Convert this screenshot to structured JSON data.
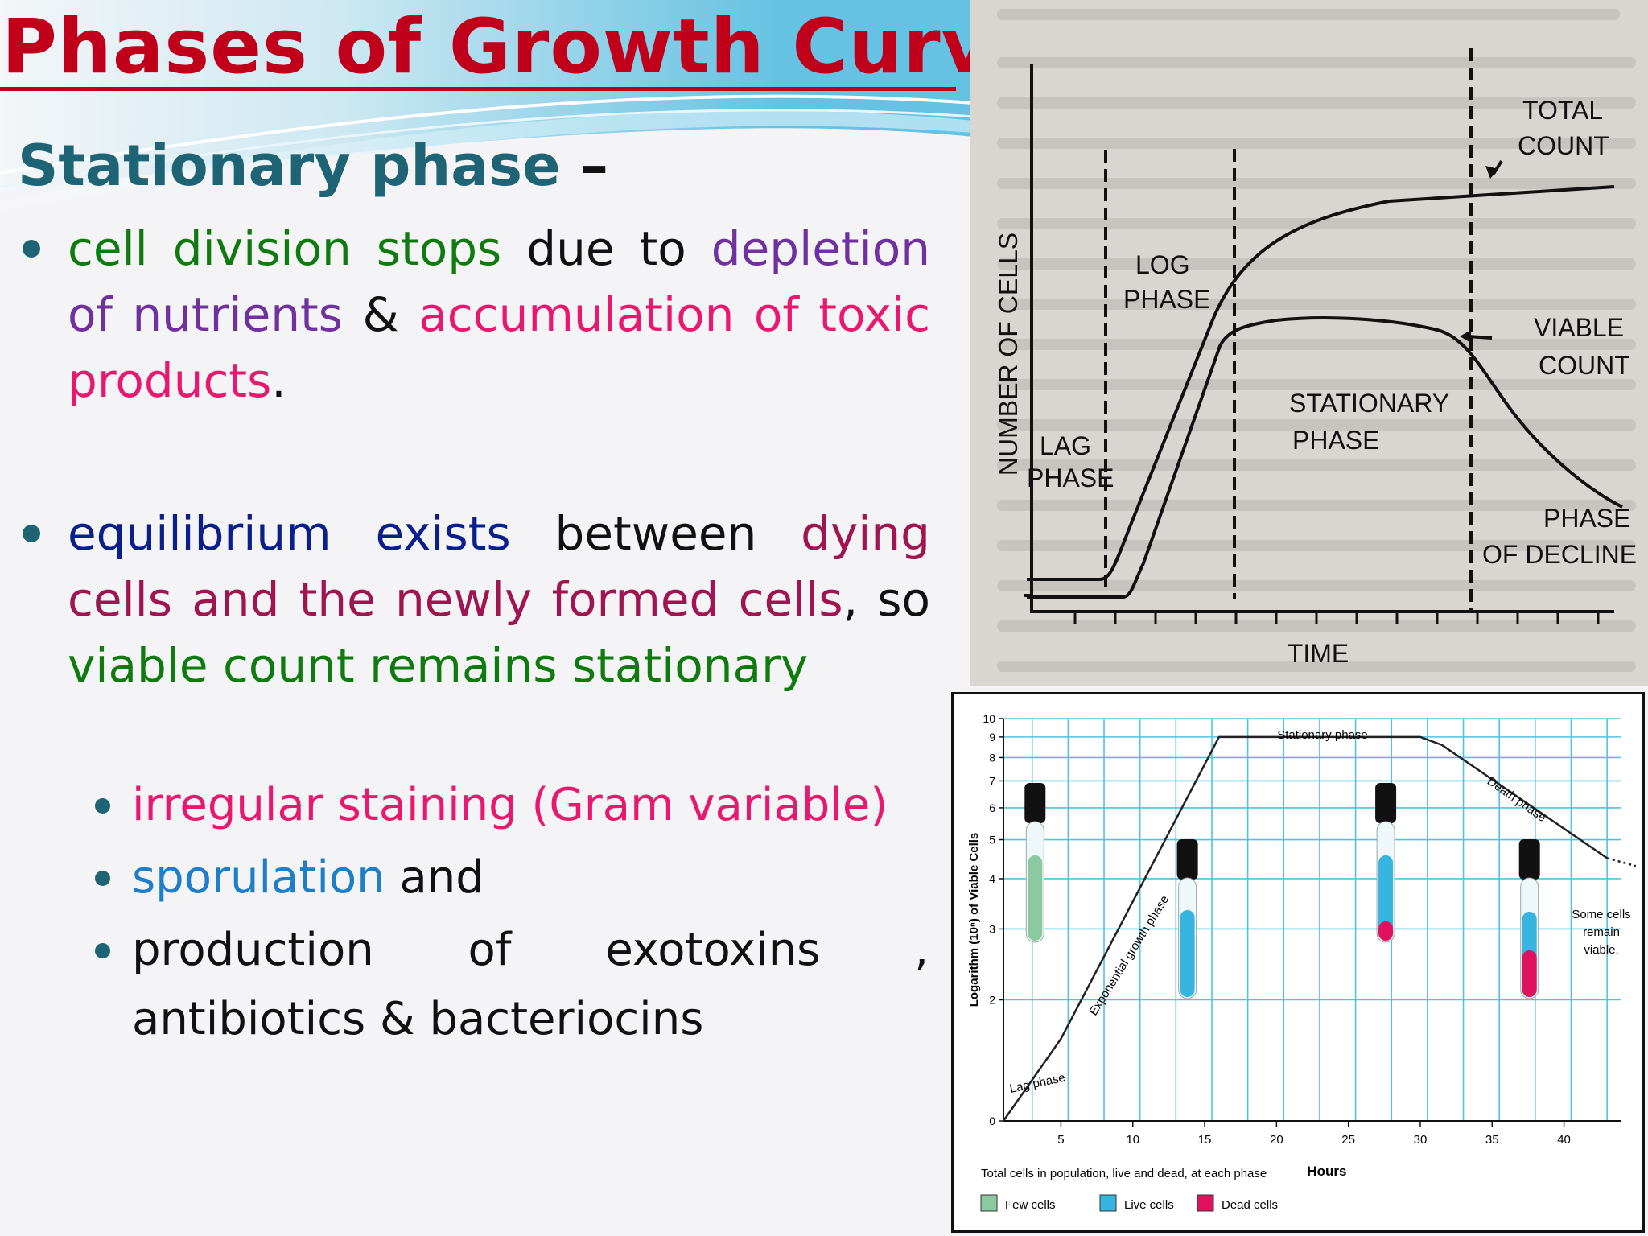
{
  "slide": {
    "title": "Phases of Growth Curve",
    "subtitle": "Stationary phase",
    "subtitle_dash": "–",
    "bullet1": {
      "p1": "cell division stops",
      "p2": " due to ",
      "p3": "depletion of nutrients",
      "p4": " & ",
      "p5": "accumulation of toxic products",
      "p6": "."
    },
    "bullet2": {
      "p1": " equilibrium exists",
      "p2": " between ",
      "p3": "dying cells and the newly formed cells",
      "p4": ", so ",
      "p5": "viable count remains stationary"
    },
    "sub1": "irregular staining (Gram variable)",
    "sub2_a": "sporulation",
    "sub2_b": " and",
    "sub3": "production of exotoxins , antibiotics & bacteriocins",
    "colors": {
      "title": "#c0001a",
      "subtitle": "#1e6475",
      "green": "#0f7b0f",
      "purple": "#7030a0",
      "pink": "#e8186e",
      "navy": "#0a1e8c",
      "maroon": "#a01550",
      "blue": "#1e7ec8"
    }
  },
  "figure1": {
    "ylabel": "NUMBER OF CELLS",
    "xlabel": "TIME",
    "labels": {
      "lag": [
        "LAG",
        "PHASE"
      ],
      "log": [
        "LOG",
        "PHASE"
      ],
      "stationary": [
        "STATIONARY",
        "PHASE"
      ],
      "decline": [
        "PHASE",
        "OF DECLINE"
      ],
      "total": [
        "TOTAL",
        "COUNT"
      ],
      "viable": [
        "VIABLE",
        "COUNT"
      ]
    }
  },
  "chart_data": {
    "type": "line",
    "title": "",
    "xlabel": "Hours",
    "ylabel": "Logarithm (10ⁿ) of Viable Cells",
    "x_ticks": [
      "5",
      "10",
      "15",
      "20",
      "25",
      "30",
      "35",
      "40"
    ],
    "y_ticks": [
      "0",
      "2",
      "3",
      "4",
      "5",
      "6",
      "7",
      "8",
      "9",
      "10"
    ],
    "xlim": [
      1,
      44
    ],
    "ylim": [
      0,
      10
    ],
    "y_scale": "log",
    "series": [
      {
        "x": [
          1,
          5,
          16,
          30,
          31.5,
          43,
          45
        ],
        "y": [
          1,
          1.6,
          9,
          9,
          8.6,
          4.5,
          4.3
        ]
      }
    ],
    "annotations": {
      "lag": "Lag phase",
      "exponential": "Exponential growth phase",
      "stationary": "Stationary phase",
      "death": "Death phase",
      "survivors": [
        "Some cells",
        "remain",
        "viable."
      ]
    },
    "legend": {
      "title": "Total cells in population, live and dead, at each phase",
      "items": [
        {
          "label": "Few cells",
          "color": "#8cc9a0"
        },
        {
          "label": "Live cells",
          "color": "#38b4e0"
        },
        {
          "label": "Dead cells",
          "color": "#e0115f"
        }
      ]
    },
    "grid": true,
    "tube_colors": {
      "cap": "#111111",
      "few": "#8cc9a0",
      "live": "#38b4e0",
      "dead": "#e0115f"
    }
  }
}
